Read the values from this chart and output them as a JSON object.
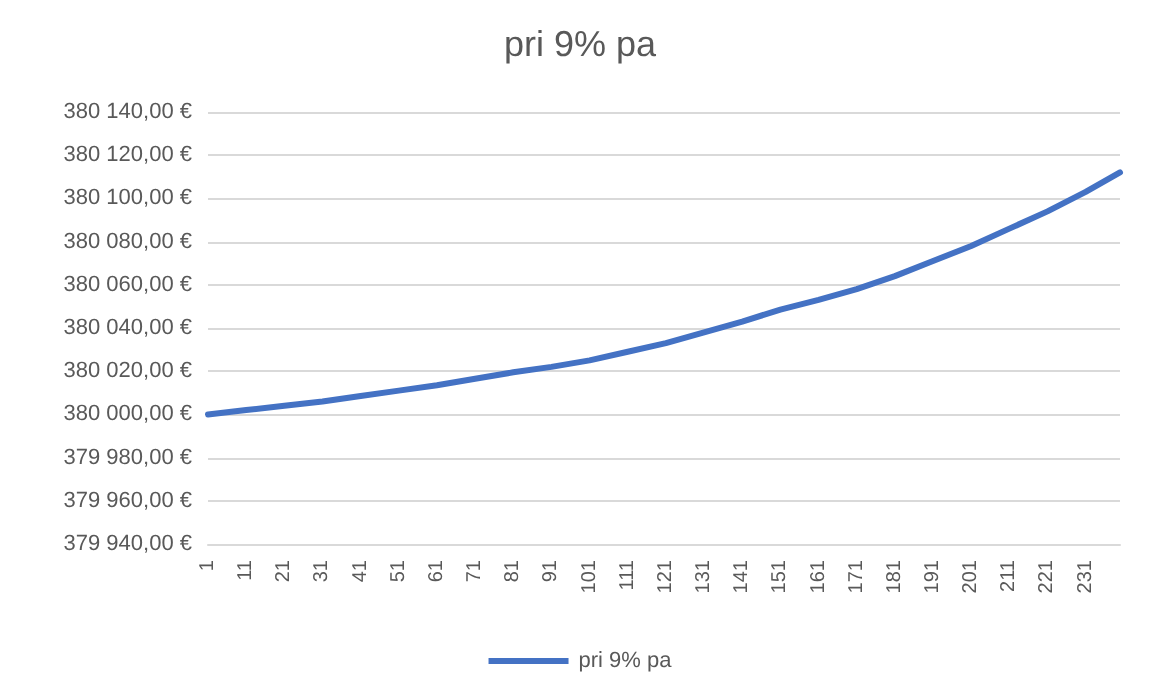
{
  "chart_data": {
    "type": "line",
    "title": "pri 9% pa",
    "x": [
      1,
      11,
      21,
      31,
      41,
      51,
      61,
      71,
      81,
      91,
      101,
      111,
      121,
      131,
      141,
      151,
      161,
      171,
      181,
      191,
      201,
      211,
      221,
      231,
      240
    ],
    "series": [
      {
        "name": "pri 9% pa",
        "color": "#4472c4",
        "values": [
          380000,
          380002,
          380004,
          380006,
          380008.5,
          380011,
          380013.5,
          380016.5,
          380019.5,
          380022,
          380025,
          380029,
          380033,
          380038,
          380043,
          380048.5,
          380053,
          380058,
          380064,
          380071,
          380078,
          380086,
          380094,
          380103,
          380112
        ]
      }
    ],
    "xlim": [
      1,
      240
    ],
    "xticks": [
      1,
      11,
      21,
      31,
      41,
      51,
      61,
      71,
      81,
      91,
      101,
      111,
      121,
      131,
      141,
      151,
      161,
      171,
      181,
      191,
      201,
      211,
      221,
      231
    ],
    "ylim": [
      379940,
      380140
    ],
    "yticks": [
      {
        "value": 379940,
        "label": "379 940,00 €"
      },
      {
        "value": 379960,
        "label": "379 960,00 €"
      },
      {
        "value": 379980,
        "label": "379 980,00 €"
      },
      {
        "value": 380000,
        "label": "380 000,00 €"
      },
      {
        "value": 380020,
        "label": "380 020,00 €"
      },
      {
        "value": 380040,
        "label": "380 040,00 €"
      },
      {
        "value": 380060,
        "label": "380 060,00 €"
      },
      {
        "value": 380080,
        "label": "380 080,00 €"
      },
      {
        "value": 380100,
        "label": "380 100,00 €"
      },
      {
        "value": 380120,
        "label": "380 120,00 €"
      },
      {
        "value": 380140,
        "label": "380 140,00 €"
      }
    ],
    "grid": "y",
    "legend": "bottom",
    "marker": "none",
    "line_style": "solid"
  }
}
